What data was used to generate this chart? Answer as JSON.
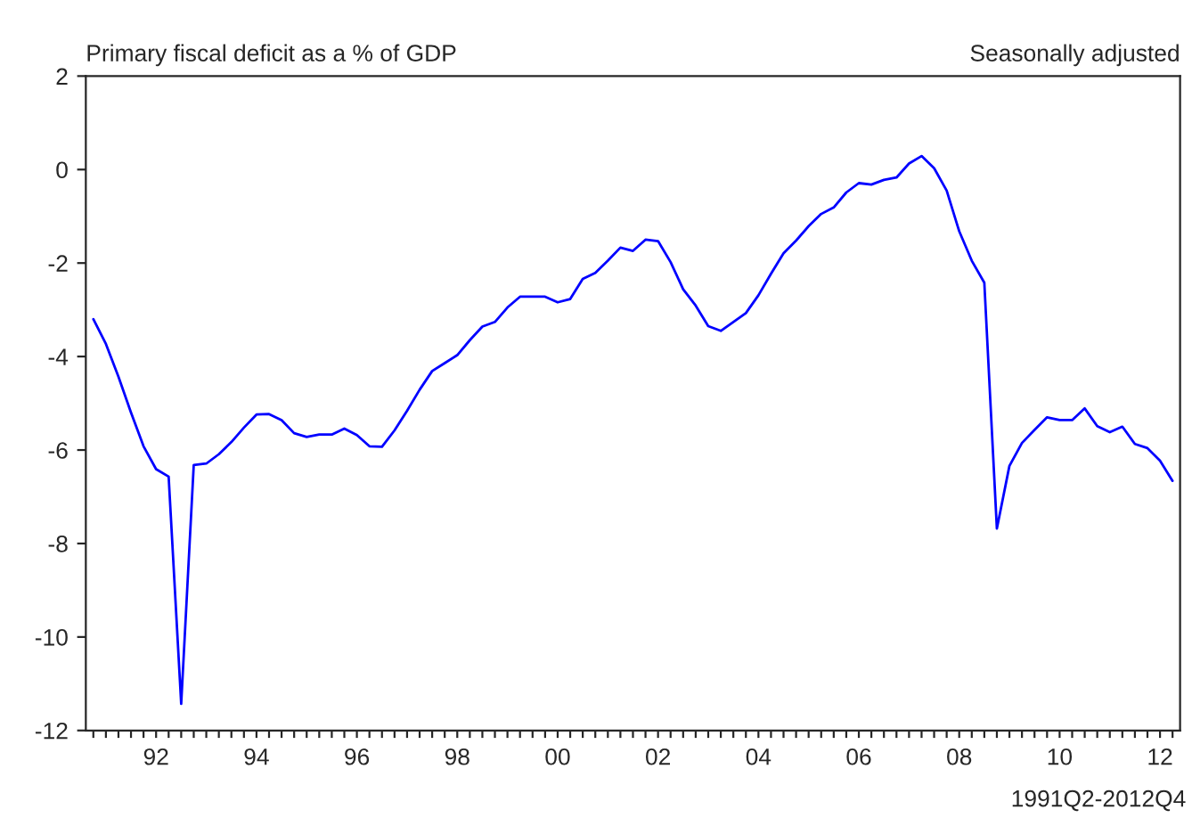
{
  "chart_data": {
    "type": "line",
    "title": "Primary fiscal deficit as a % of GDP",
    "subtitle": "Seasonally adjusted",
    "annotations": [
      "1991Q2-2012Q4"
    ],
    "categories": [
      null,
      null,
      null,
      null,
      null,
      "92",
      null,
      null,
      null,
      null,
      null,
      null,
      null,
      "94",
      null,
      null,
      null,
      null,
      null,
      null,
      null,
      "96",
      null,
      null,
      null,
      null,
      null,
      null,
      null,
      "98",
      null,
      null,
      null,
      null,
      null,
      null,
      null,
      "00",
      null,
      null,
      null,
      null,
      null,
      null,
      null,
      "02",
      null,
      null,
      null,
      null,
      null,
      null,
      null,
      "04",
      null,
      null,
      null,
      null,
      null,
      null,
      null,
      "06",
      null,
      null,
      null,
      null,
      null,
      null,
      null,
      "08",
      null,
      null,
      null,
      null,
      null,
      null,
      null,
      "10",
      null,
      null,
      null,
      null,
      null,
      null,
      null,
      "12",
      null
    ],
    "series": [
      {
        "color": "#0000ff",
        "values": [
          -3.2,
          -3.73,
          -4.43,
          -5.2,
          -5.92,
          -6.41,
          -6.57,
          -11.43,
          -6.32,
          -6.29,
          -6.09,
          -5.83,
          -5.52,
          -5.24,
          -5.23,
          -5.36,
          -5.64,
          -5.72,
          -5.67,
          -5.67,
          -5.54,
          -5.68,
          -5.92,
          -5.93,
          -5.58,
          -5.16,
          -4.71,
          -4.31,
          -4.14,
          -3.97,
          -3.65,
          -3.36,
          -3.26,
          -2.95,
          -2.72,
          -2.72,
          -2.72,
          -2.84,
          -2.77,
          -2.34,
          -2.21,
          -1.95,
          -1.67,
          -1.74,
          -1.5,
          -1.53,
          -1.98,
          -2.56,
          -2.91,
          -3.35,
          -3.45,
          -3.26,
          -3.07,
          -2.69,
          -2.23,
          -1.79,
          -1.52,
          -1.21,
          -0.95,
          -0.81,
          -0.49,
          -0.29,
          -0.32,
          -0.22,
          -0.17,
          0.13,
          0.29,
          0.03,
          -0.45,
          -1.32,
          -1.95,
          -2.42,
          -7.68,
          -6.34,
          -5.85,
          -5.57,
          -5.3,
          -5.36,
          -5.36,
          -5.11,
          -5.49,
          -5.62,
          -5.5,
          -5.87,
          -5.96,
          -6.23,
          -6.66
        ]
      }
    ],
    "ylim": [
      -12,
      2
    ],
    "yticks": [
      -12,
      -10,
      -8,
      -6,
      -4,
      -2,
      0,
      2
    ],
    "grid": false,
    "legend": false,
    "marker": "none",
    "line_style": "solid"
  }
}
